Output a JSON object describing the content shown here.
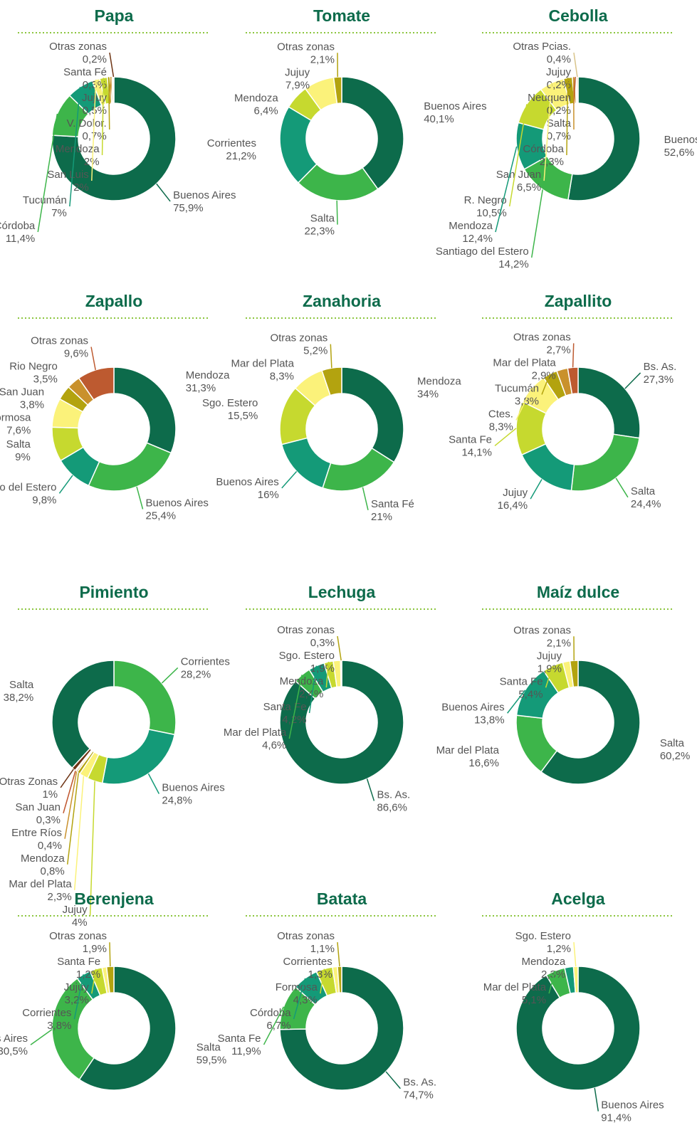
{
  "chart_data": [
    {
      "type": "pie",
      "title": "Papa",
      "categories": [
        "Buenos Aires",
        "Córdoba",
        "Tucumán",
        "San Luis",
        "Mendoza",
        "V. Dolor.",
        "Jujuy",
        "Santa Fé",
        "Otras zonas"
      ],
      "values": [
        75.9,
        11.4,
        7,
        2,
        2,
        0.7,
        0.5,
        0.3,
        0.2
      ],
      "value_labels": [
        "75,9%",
        "11,4%",
        "7%",
        "2%",
        "2%",
        "0,7%",
        "0,5%",
        "0,3%",
        "0,2%"
      ],
      "colors": [
        "#0d6b4b",
        "#3db54a",
        "#149a78",
        "#fbf27a",
        "#c6d92f",
        "#b3a30f",
        "#c9912c",
        "#b37a3a",
        "#6e3414"
      ]
    },
    {
      "type": "pie",
      "title": "Tomate",
      "categories": [
        "Buenos Aires",
        "Salta",
        "Corrientes",
        "Mendoza",
        "Jujuy",
        "Otras zonas"
      ],
      "values": [
        40.1,
        22.3,
        21.2,
        6.4,
        7.9,
        2.1
      ],
      "value_labels": [
        "40,1%",
        "22,3%",
        "21,2%",
        "6,4%",
        "7,9%",
        "2,1%"
      ],
      "colors": [
        "#0d6b4b",
        "#3db54a",
        "#149a78",
        "#c6d92f",
        "#fbf27a",
        "#b3a30f"
      ]
    },
    {
      "type": "pie",
      "title": "Cebolla",
      "categories": [
        "Buenos Aires",
        "Santiago del Estero",
        "Mendoza",
        "R. Negro",
        "San Juan",
        "Córdoba",
        "Salta",
        "Neuquen",
        "Jujuy",
        "Otras Pcias."
      ],
      "values": [
        52.6,
        14.2,
        12.4,
        10.5,
        6.5,
        2.3,
        0.7,
        0.2,
        0.2,
        0.4
      ],
      "value_labels": [
        "52,6%",
        "14,2%",
        "12,4%",
        "10,5%",
        "6,5%",
        "2,3%",
        "0,7%",
        "0,2%",
        "0,2%",
        "0,4%"
      ],
      "colors": [
        "#0d6b4b",
        "#3db54a",
        "#149a78",
        "#c6d92f",
        "#fbf27a",
        "#b3a30f",
        "#c9912c",
        "#c0562e",
        "#6e3414",
        "#d9c48a"
      ]
    },
    {
      "type": "pie",
      "title": "Zapallo",
      "categories": [
        "Mendoza",
        "Buenos Aires",
        "Santiago del Estero",
        "Salta",
        "Formosa",
        "San Juan",
        "Rio Negro",
        "Otras zonas"
      ],
      "values": [
        31.3,
        25.4,
        9.8,
        9,
        7.6,
        3.8,
        3.5,
        9.6
      ],
      "value_labels": [
        "31,3%",
        "25,4%",
        "9,8%",
        "9%",
        "7,6%",
        "3,8%",
        "3,5%",
        "9,6%"
      ],
      "colors": [
        "#0d6b4b",
        "#3db54a",
        "#149a78",
        "#c6d92f",
        "#fbf27a",
        "#b3a30f",
        "#c9912c",
        "#bd5a30"
      ]
    },
    {
      "type": "pie",
      "title": "Zanahoria",
      "categories": [
        "Mendoza",
        "Santa Fé",
        "Buenos Aires",
        "Sgo. Estero",
        "Mar del Plata",
        "Otras zonas"
      ],
      "values": [
        34,
        21,
        16,
        15.5,
        8.3,
        5.2
      ],
      "value_labels": [
        "34%",
        "21%",
        "16%",
        "15,5%",
        "8,3%",
        "5,2%"
      ],
      "colors": [
        "#0d6b4b",
        "#3db54a",
        "#149a78",
        "#c6d92f",
        "#fbf27a",
        "#b3a30f"
      ]
    },
    {
      "type": "pie",
      "title": "Zapallito",
      "categories": [
        "Bs. As.",
        "Salta",
        "Jujuy",
        "Santa Fe",
        "Ctes.",
        "Tucumán",
        "Mar del Plata",
        "Otras zonas"
      ],
      "values": [
        27.3,
        24.4,
        16.4,
        14.1,
        8.3,
        3.8,
        2.9,
        2.7
      ],
      "value_labels": [
        "27,3%",
        "24,4%",
        "16,4%",
        "14,1%",
        "8,3%",
        "3,8%",
        "2,9%",
        "2,7%"
      ],
      "colors": [
        "#0d6b4b",
        "#3db54a",
        "#149a78",
        "#c6d92f",
        "#fbf27a",
        "#b3a30f",
        "#c9912c",
        "#bd5a30"
      ]
    },
    {
      "type": "pie",
      "title": "Pimiento",
      "categories": [
        "Corrientes",
        "Buenos Aires",
        "Jujuy",
        "Mar del Plata",
        "Mendoza",
        "Entre Ríos",
        "San Juan",
        "Otras Zonas",
        "Salta"
      ],
      "values": [
        28.2,
        24.8,
        4,
        2.3,
        0.8,
        0.4,
        0.3,
        1,
        38.2
      ],
      "value_labels": [
        "28,2%",
        "24,8%",
        "4%",
        "2,3%",
        "0,8%",
        "0,4%",
        "0,3%",
        "1%",
        "38,2%"
      ],
      "colors": [
        "#3db54a",
        "#149a78",
        "#c6d92f",
        "#fbf27a",
        "#b3a30f",
        "#c9912c",
        "#c0562e",
        "#6e3414",
        "#0d6b4b"
      ]
    },
    {
      "type": "pie",
      "title": "Lechuga",
      "categories": [
        "Bs. As.",
        "Mar del Plata",
        "Santa Fe",
        "Mendoza",
        "Sgo. Estero",
        "Otras zonas"
      ],
      "values": [
        86.6,
        4.6,
        4.2,
        2.4,
        1.9,
        0.3
      ],
      "value_labels": [
        "86,6%",
        "4,6%",
        "4,2%",
        "2,4%",
        "1,9%",
        "0,3%"
      ],
      "colors": [
        "#0d6b4b",
        "#3db54a",
        "#149a78",
        "#c6d92f",
        "#fbf27a",
        "#b3a30f"
      ]
    },
    {
      "type": "pie",
      "title": "Maíz dulce",
      "categories": [
        "Salta",
        "Mar del Plata",
        "Buenos Aires",
        "Santa Fe",
        "Jujuy",
        "Otras zonas"
      ],
      "values": [
        60.2,
        16.6,
        13.8,
        5.4,
        1.9,
        2.1
      ],
      "value_labels": [
        "60,2%",
        "16,6%",
        "13,8%",
        "5,4%",
        "1,9%",
        "2,1%"
      ],
      "colors": [
        "#0d6b4b",
        "#3db54a",
        "#149a78",
        "#c6d92f",
        "#fbf27a",
        "#b3a30f"
      ]
    },
    {
      "type": "pie",
      "title": "Berenjena",
      "categories": [
        "Salta",
        "Buenos Aires",
        "Corrientes",
        "Jujuy",
        "Santa Fe",
        "Otras zonas"
      ],
      "values": [
        59.5,
        30.5,
        3.8,
        3.2,
        1.2,
        1.9
      ],
      "value_labels": [
        "59,5%",
        "30,5%",
        "3,8%",
        "3,2%",
        "1,2%",
        "1,9%"
      ],
      "colors": [
        "#0d6b4b",
        "#3db54a",
        "#149a78",
        "#c6d92f",
        "#fbf27a",
        "#b3a30f"
      ]
    },
    {
      "type": "pie",
      "title": "Batata",
      "categories": [
        "Bs. As.",
        "Santa Fe",
        "Córdoba",
        "Formosa",
        "Corrientes",
        "Otras zonas"
      ],
      "values": [
        74.7,
        11.9,
        6.7,
        4.3,
        1.3,
        1.1
      ],
      "value_labels": [
        "74,7%",
        "11,9%",
        "6,7%",
        "4,3%",
        "1,3%",
        "1,1%"
      ],
      "colors": [
        "#0d6b4b",
        "#3db54a",
        "#149a78",
        "#c6d92f",
        "#fbf27a",
        "#b3a30f"
      ]
    },
    {
      "type": "pie",
      "title": "Acelga",
      "categories": [
        "Buenos Aires",
        "Mar del Plata",
        "Mendoza",
        "Sgo. Estero"
      ],
      "values": [
        91.4,
        5.1,
        2.3,
        1.2
      ],
      "value_labels": [
        "91,4%",
        "5,1%",
        "2,3%",
        "1,2%"
      ],
      "colors": [
        "#0d6b4b",
        "#3db54a",
        "#149a78",
        "#fbf27a"
      ]
    }
  ]
}
